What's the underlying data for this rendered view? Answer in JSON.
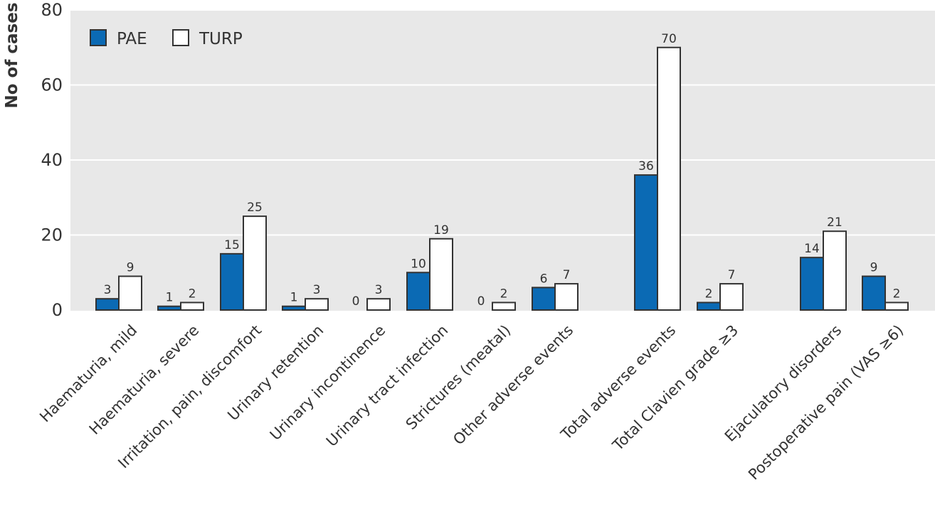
{
  "chart_data": {
    "type": "bar",
    "ylabel": "No of cases",
    "xlabel": "",
    "ylim": [
      0,
      80
    ],
    "yticks": [
      0,
      20,
      40,
      60,
      80
    ],
    "grid": true,
    "legend_position": "top-left",
    "categories": [
      "Haematuria, mild",
      "Haematuria, severe",
      "Irritation, pain, discomfort",
      "Urinary retention",
      "Urinary incontinence",
      "Urinary tract infection",
      "Strictures (meatal)",
      "Other adverse events",
      "Total adverse events",
      "Total Clavien grade ≥3",
      "Ejaculatory disorders",
      "Postoperative pain (VAS ≥6)"
    ],
    "series": [
      {
        "name": "PAE",
        "color": "#0b6ab4",
        "values": [
          3,
          1,
          15,
          1,
          0,
          10,
          0,
          6,
          36,
          2,
          14,
          9
        ]
      },
      {
        "name": "TURP",
        "color": "#ffffff",
        "values": [
          9,
          2,
          25,
          3,
          3,
          19,
          2,
          7,
          70,
          7,
          21,
          2
        ]
      }
    ],
    "colors": {
      "background": "#e8e8e8",
      "grid": "#ffffff",
      "bar_outline": "#333333",
      "text": "#333333"
    }
  }
}
